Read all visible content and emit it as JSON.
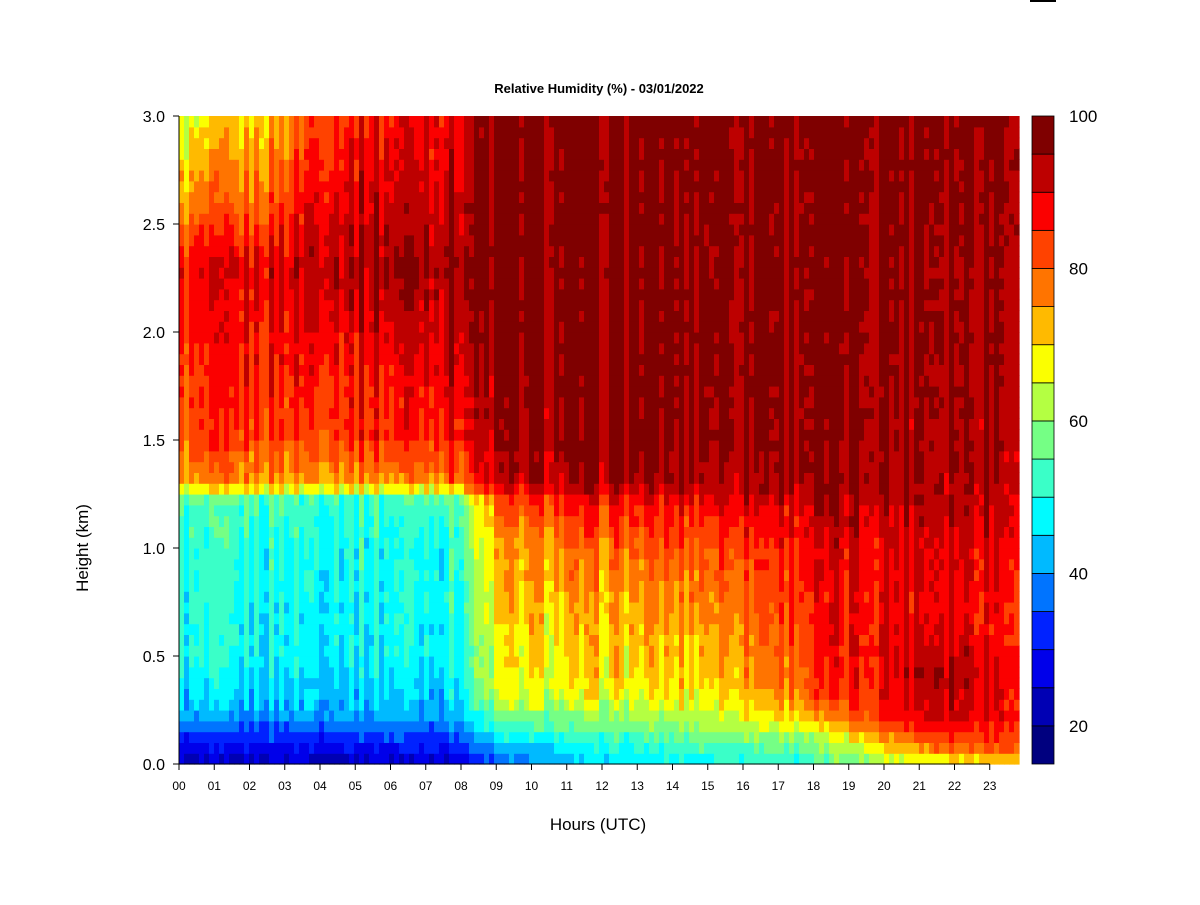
{
  "chart_data": {
    "type": "heatmap",
    "title": "Relative Humidity (%) - 03/01/2022",
    "xlabel": "Hours (UTC)",
    "ylabel": "Height (km)",
    "xlim": [
      0,
      23.83
    ],
    "ylim": [
      0,
      3.0
    ],
    "x_ticks": [
      "00",
      "01",
      "02",
      "03",
      "04",
      "05",
      "06",
      "07",
      "08",
      "09",
      "10",
      "11",
      "12",
      "13",
      "14",
      "15",
      "16",
      "17",
      "18",
      "19",
      "20",
      "21",
      "22",
      "23"
    ],
    "y_ticks": [
      "0.0",
      "0.5",
      "1.0",
      "1.5",
      "2.0",
      "2.5",
      "3.0"
    ],
    "colorbar": {
      "min": 15,
      "max": 100,
      "ticks": [
        {
          "value": 20,
          "label": "20"
        },
        {
          "value": 40,
          "label": "40"
        },
        {
          "value": 60,
          "label": "60"
        },
        {
          "value": 80,
          "label": "80"
        },
        {
          "value": 100,
          "label": "100"
        }
      ],
      "levels": [
        {
          "from": 15,
          "to": 20,
          "color": "#00007f"
        },
        {
          "from": 20,
          "to": 25,
          "color": "#0000b4"
        },
        {
          "from": 25,
          "to": 30,
          "color": "#0000ea"
        },
        {
          "from": 30,
          "to": 35,
          "color": "#0022ff"
        },
        {
          "from": 35,
          "to": 40,
          "color": "#0074ff"
        },
        {
          "from": 40,
          "to": 45,
          "color": "#00baff"
        },
        {
          "from": 45,
          "to": 50,
          "color": "#00fbff"
        },
        {
          "from": 50,
          "to": 55,
          "color": "#3affc8"
        },
        {
          "from": 55,
          "to": 60,
          "color": "#75ff85"
        },
        {
          "from": 60,
          "to": 65,
          "color": "#b4ff42"
        },
        {
          "from": 65,
          "to": 70,
          "color": "#fbff00"
        },
        {
          "from": 70,
          "to": 75,
          "color": "#ffba00"
        },
        {
          "from": 75,
          "to": 80,
          "color": "#ff7400"
        },
        {
          "from": 80,
          "to": 85,
          "color": "#ff4200"
        },
        {
          "from": 85,
          "to": 90,
          "color": "#fb0000"
        },
        {
          "from": 90,
          "to": 95,
          "color": "#bd0000"
        },
        {
          "from": 95,
          "to": 100,
          "color": "#7f0000"
        }
      ]
    },
    "field_profiles": [
      {
        "hour": 0.0,
        "rh": [
          {
            "h": 0,
            "v": 22
          },
          {
            "h": 0.1,
            "v": 30
          },
          {
            "h": 0.25,
            "v": 42
          },
          {
            "h": 0.5,
            "v": 48
          },
          {
            "h": 1.0,
            "v": 50
          },
          {
            "h": 1.22,
            "v": 54
          },
          {
            "h": 1.3,
            "v": 72
          },
          {
            "h": 1.5,
            "v": 80
          },
          {
            "h": 2.0,
            "v": 84
          },
          {
            "h": 2.3,
            "v": 87
          },
          {
            "h": 2.6,
            "v": 74
          },
          {
            "h": 3.0,
            "v": 62
          }
        ]
      },
      {
        "hour": 1.0,
        "rh": [
          {
            "h": 0,
            "v": 22
          },
          {
            "h": 0.1,
            "v": 30
          },
          {
            "h": 0.25,
            "v": 42
          },
          {
            "h": 0.5,
            "v": 48
          },
          {
            "h": 1.0,
            "v": 50
          },
          {
            "h": 1.22,
            "v": 52
          },
          {
            "h": 1.3,
            "v": 74
          },
          {
            "h": 1.5,
            "v": 82
          },
          {
            "h": 2.0,
            "v": 85
          },
          {
            "h": 2.3,
            "v": 88
          },
          {
            "h": 2.6,
            "v": 78
          },
          {
            "h": 3.0,
            "v": 68
          }
        ]
      },
      {
        "hour": 2.5,
        "rh": [
          {
            "h": 0,
            "v": 23
          },
          {
            "h": 0.1,
            "v": 31
          },
          {
            "h": 0.25,
            "v": 42
          },
          {
            "h": 0.5,
            "v": 48
          },
          {
            "h": 1.0,
            "v": 50
          },
          {
            "h": 1.22,
            "v": 53
          },
          {
            "h": 1.3,
            "v": 74
          },
          {
            "h": 1.5,
            "v": 83
          },
          {
            "h": 2.0,
            "v": 88
          },
          {
            "h": 2.3,
            "v": 90
          },
          {
            "h": 2.6,
            "v": 80
          },
          {
            "h": 3.0,
            "v": 72
          }
        ]
      },
      {
        "hour": 4.0,
        "rh": [
          {
            "h": 0,
            "v": 23
          },
          {
            "h": 0.1,
            "v": 31
          },
          {
            "h": 0.25,
            "v": 43
          },
          {
            "h": 0.5,
            "v": 48
          },
          {
            "h": 1.0,
            "v": 50
          },
          {
            "h": 1.22,
            "v": 53
          },
          {
            "h": 1.3,
            "v": 75
          },
          {
            "h": 1.5,
            "v": 84
          },
          {
            "h": 2.0,
            "v": 90
          },
          {
            "h": 2.3,
            "v": 95
          },
          {
            "h": 2.6,
            "v": 90
          },
          {
            "h": 3.0,
            "v": 85
          }
        ]
      },
      {
        "hour": 6.0,
        "rh": [
          {
            "h": 0,
            "v": 24
          },
          {
            "h": 0.1,
            "v": 32
          },
          {
            "h": 0.25,
            "v": 43
          },
          {
            "h": 0.5,
            "v": 48
          },
          {
            "h": 1.0,
            "v": 50
          },
          {
            "h": 1.22,
            "v": 52
          },
          {
            "h": 1.3,
            "v": 75
          },
          {
            "h": 1.5,
            "v": 85
          },
          {
            "h": 2.0,
            "v": 90
          },
          {
            "h": 2.3,
            "v": 96
          },
          {
            "h": 2.6,
            "v": 92
          },
          {
            "h": 3.0,
            "v": 88
          }
        ]
      },
      {
        "hour": 7.8,
        "rh": [
          {
            "h": 0,
            "v": 25
          },
          {
            "h": 0.1,
            "v": 33
          },
          {
            "h": 0.25,
            "v": 44
          },
          {
            "h": 0.5,
            "v": 49
          },
          {
            "h": 1.0,
            "v": 51
          },
          {
            "h": 1.22,
            "v": 55
          },
          {
            "h": 1.3,
            "v": 78
          },
          {
            "h": 1.5,
            "v": 87
          },
          {
            "h": 2.0,
            "v": 94
          },
          {
            "h": 2.3,
            "v": 97
          },
          {
            "h": 2.6,
            "v": 93
          },
          {
            "h": 3.0,
            "v": 90
          }
        ]
      },
      {
        "hour": 9.2,
        "rh": [
          {
            "h": 0,
            "v": 35
          },
          {
            "h": 0.1,
            "v": 45
          },
          {
            "h": 0.2,
            "v": 55
          },
          {
            "h": 0.35,
            "v": 66
          },
          {
            "h": 0.7,
            "v": 70
          },
          {
            "h": 1.0,
            "v": 74
          },
          {
            "h": 1.2,
            "v": 80
          },
          {
            "h": 1.3,
            "v": 92
          },
          {
            "h": 2.0,
            "v": 97
          },
          {
            "h": 3.0,
            "v": 97
          }
        ]
      },
      {
        "hour": 12.0,
        "rh": [
          {
            "h": 0,
            "v": 45
          },
          {
            "h": 0.1,
            "v": 50
          },
          {
            "h": 0.2,
            "v": 58
          },
          {
            "h": 0.35,
            "v": 68
          },
          {
            "h": 0.7,
            "v": 72
          },
          {
            "h": 1.0,
            "v": 78
          },
          {
            "h": 1.2,
            "v": 86
          },
          {
            "h": 1.3,
            "v": 93
          },
          {
            "h": 1.5,
            "v": 97
          },
          {
            "h": 3.0,
            "v": 98
          }
        ]
      },
      {
        "hour": 15.0,
        "rh": [
          {
            "h": 0,
            "v": 48
          },
          {
            "h": 0.1,
            "v": 55
          },
          {
            "h": 0.2,
            "v": 62
          },
          {
            "h": 0.35,
            "v": 70
          },
          {
            "h": 0.7,
            "v": 76
          },
          {
            "h": 1.0,
            "v": 82
          },
          {
            "h": 1.2,
            "v": 88
          },
          {
            "h": 1.3,
            "v": 94
          },
          {
            "h": 1.5,
            "v": 97
          },
          {
            "h": 3.0,
            "v": 98
          }
        ]
      },
      {
        "hour": 18.0,
        "rh": [
          {
            "h": 0,
            "v": 52
          },
          {
            "h": 0.1,
            "v": 58
          },
          {
            "h": 0.2,
            "v": 72
          },
          {
            "h": 0.35,
            "v": 82
          },
          {
            "h": 0.7,
            "v": 86
          },
          {
            "h": 1.0,
            "v": 88
          },
          {
            "h": 1.2,
            "v": 92
          },
          {
            "h": 1.3,
            "v": 96
          },
          {
            "h": 3.0,
            "v": 98
          }
        ]
      },
      {
        "hour": 21.5,
        "rh": [
          {
            "h": 0,
            "v": 65
          },
          {
            "h": 0.08,
            "v": 80
          },
          {
            "h": 0.2,
            "v": 92
          },
          {
            "h": 0.4,
            "v": 96
          },
          {
            "h": 0.7,
            "v": 90
          },
          {
            "h": 1.0,
            "v": 92
          },
          {
            "h": 1.2,
            "v": 95
          },
          {
            "h": 3.0,
            "v": 98
          }
        ]
      },
      {
        "hour": 23.83,
        "rh": [
          {
            "h": 0,
            "v": 70
          },
          {
            "h": 0.08,
            "v": 82
          },
          {
            "h": 0.2,
            "v": 88
          },
          {
            "h": 0.4,
            "v": 90
          },
          {
            "h": 0.7,
            "v": 87
          },
          {
            "h": 1.0,
            "v": 90
          },
          {
            "h": 1.2,
            "v": 94
          },
          {
            "h": 3.0,
            "v": 98
          }
        ]
      }
    ]
  }
}
